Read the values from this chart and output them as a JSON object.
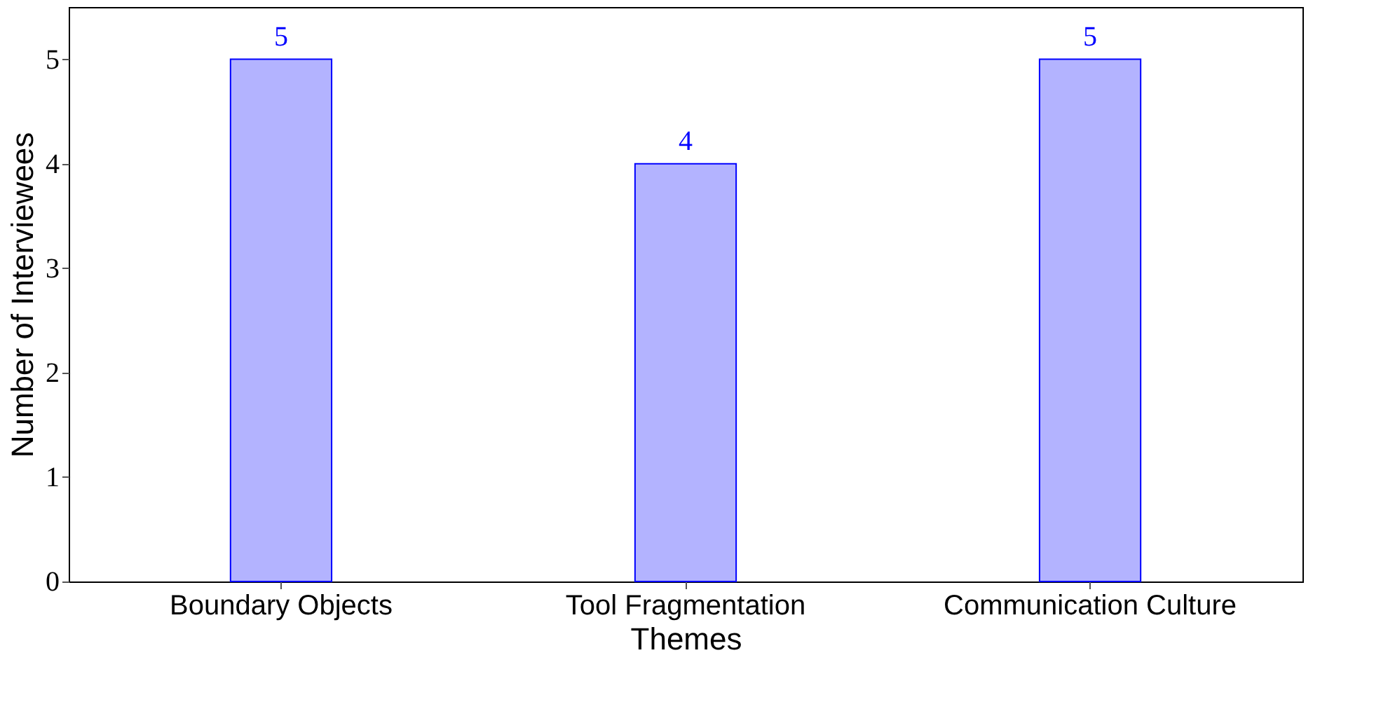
{
  "chart_data": {
    "type": "bar",
    "xlabel": "Themes",
    "ylabel": "Number of Interviewees",
    "categories": [
      "Boundary Objects",
      "Tool Fragmentation",
      "Communication Culture"
    ],
    "values": [
      5,
      4,
      5
    ],
    "color": "#b3b3ff",
    "ylim": [
      0,
      5.5
    ],
    "yticks": [
      0,
      1,
      2,
      3,
      4,
      5
    ],
    "grid": false,
    "data_labels": true
  }
}
